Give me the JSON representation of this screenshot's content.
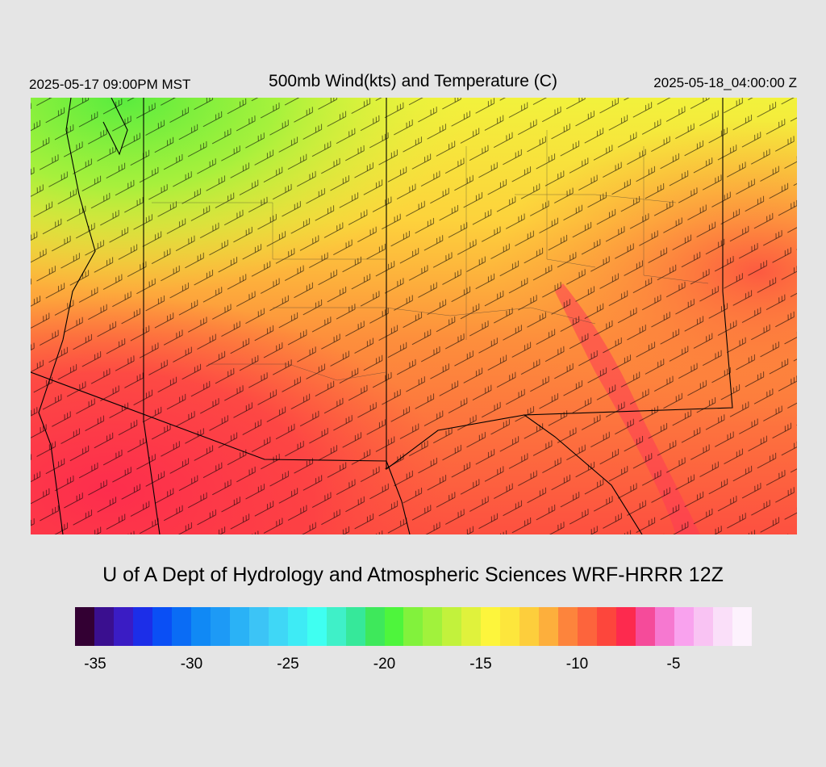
{
  "header": {
    "title": "500mb Wind(kts) and Temperature (C)",
    "valid_local": "2025-05-17 09:00PM MST",
    "valid_utc": "2025-05-18_04:00:00 Z"
  },
  "credit": "U of A Dept of Hydrology and Atmospheric Sciences WRF-HRRR 12Z",
  "colorbar": {
    "colors": [
      "#330033",
      "#3a0f8f",
      "#3a1cc4",
      "#1c2ee8",
      "#0a4ff5",
      "#0a6cf5",
      "#1089f5",
      "#1d9af6",
      "#2ab2f6",
      "#3cc4f6",
      "#3fd7f6",
      "#3eebf5",
      "#3ffff1",
      "#3ff0c8",
      "#36e89a",
      "#3ee85b",
      "#4ef53c",
      "#82f23c",
      "#a1f23c",
      "#c2f23c",
      "#e0f23c",
      "#fdf53c",
      "#fde63c",
      "#fdce3c",
      "#fdaf3c",
      "#fd843c",
      "#fd643c",
      "#fd463c",
      "#fd2a4e",
      "#f54b9a",
      "#f678d0",
      "#f9a2ee",
      "#f9c3f3",
      "#fadff9",
      "#fdf2fd"
    ],
    "ticks": [
      {
        "label": "-35",
        "value": -35
      },
      {
        "label": "-30",
        "value": -30
      },
      {
        "label": "-25",
        "value": -25
      },
      {
        "label": "-20",
        "value": -20
      },
      {
        "label": "-15",
        "value": -15
      },
      {
        "label": "-10",
        "value": -10
      },
      {
        "label": "-5",
        "value": -5
      }
    ]
  }
}
